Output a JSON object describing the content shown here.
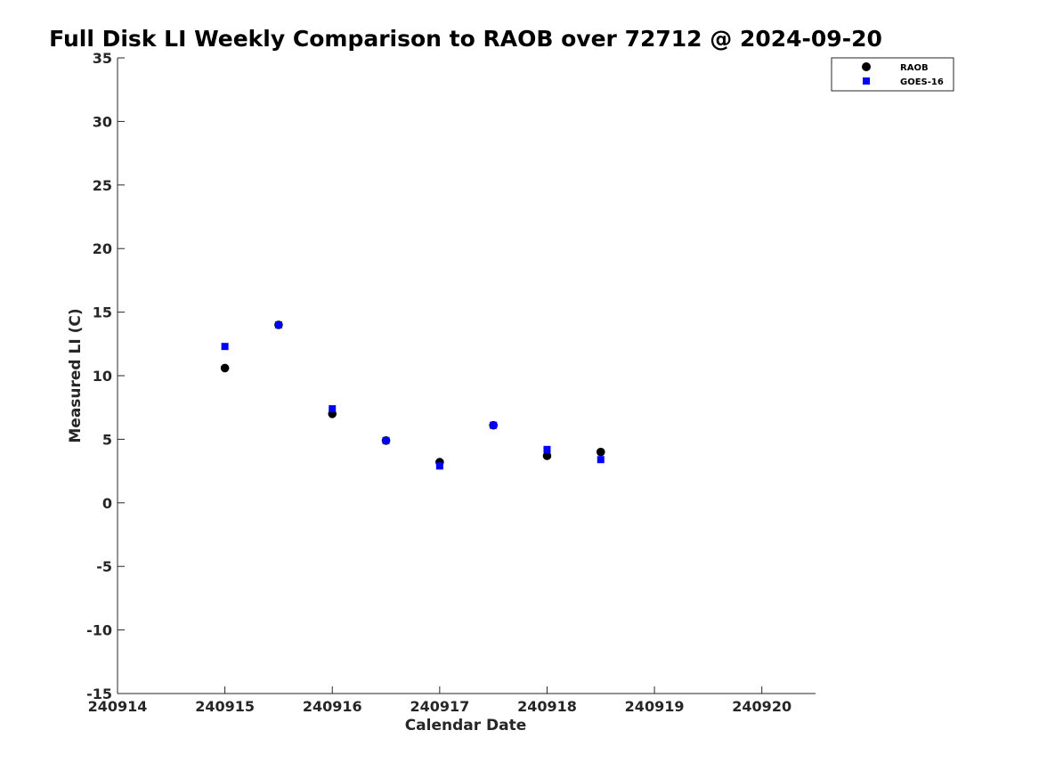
{
  "chart_data": {
    "type": "scatter",
    "title": "Full Disk LI Weekly Comparison to RAOB over 72712 @ 2024-09-20",
    "xlabel": "Calendar Date",
    "ylabel": "Measured LI (C)",
    "xlim": [
      240914,
      240920.5
    ],
    "ylim": [
      -15,
      35
    ],
    "x_ticks": [
      240914,
      240915,
      240916,
      240917,
      240918,
      240919,
      240920
    ],
    "x_tick_labels": [
      "240914",
      "240915",
      "240916",
      "240917",
      "240918",
      "240919",
      "240920"
    ],
    "y_ticks": [
      -15,
      -10,
      -5,
      0,
      5,
      10,
      15,
      20,
      25,
      30,
      35
    ],
    "y_tick_labels": [
      "-15",
      "-10",
      "-5",
      "0",
      "5",
      "10",
      "15",
      "20",
      "25",
      "30",
      "35"
    ],
    "grid": false,
    "legend_position": "top-right",
    "series": [
      {
        "name": "RAOB",
        "marker": "circle",
        "color": "#000000",
        "x": [
          240915,
          240915.5,
          240916,
          240916.5,
          240917,
          240917.5,
          240918,
          240918.5
        ],
        "y": [
          10.6,
          14.0,
          7.0,
          4.9,
          3.2,
          6.1,
          3.7,
          4.0
        ]
      },
      {
        "name": "GOES-16",
        "marker": "square",
        "color": "#0000ff",
        "x": [
          240915,
          240915.5,
          240916,
          240916.5,
          240917,
          240917.5,
          240918,
          240918.5
        ],
        "y": [
          12.3,
          14.0,
          7.4,
          4.9,
          2.9,
          6.1,
          4.2,
          3.4
        ]
      }
    ]
  }
}
